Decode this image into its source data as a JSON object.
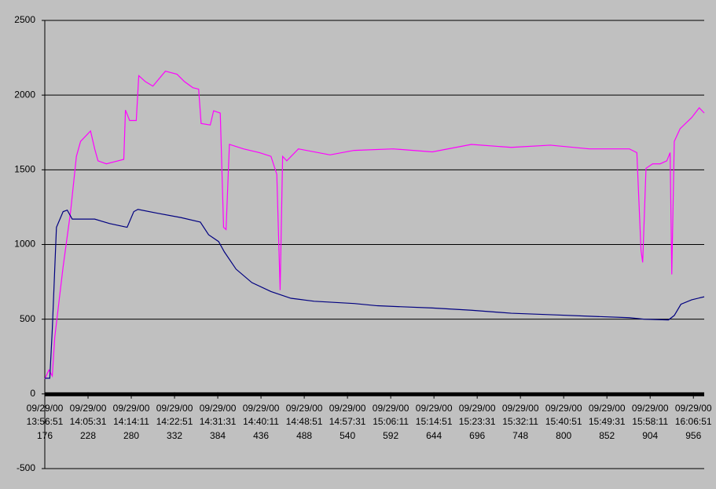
{
  "chart_data": {
    "type": "line",
    "xlim": [
      176,
      969
    ],
    "xticks": [
      {
        "value": 176,
        "label": "09/29/00\n13:56:51\n176"
      },
      {
        "value": 228,
        "label": "09/29/00\n14:05:31\n228"
      },
      {
        "value": 280,
        "label": "09/29/00\n14:14:11\n280"
      },
      {
        "value": 332,
        "label": "09/29/00\n14:22:51\n332"
      },
      {
        "value": 384,
        "label": "09/29/00\n14:31:31\n384"
      },
      {
        "value": 436,
        "label": "09/29/00\n14:40:11\n436"
      },
      {
        "value": 488,
        "label": "09/29/00\n14:48:51\n488"
      },
      {
        "value": 540,
        "label": "09/29/00\n14:57:31\n540"
      },
      {
        "value": 592,
        "label": "09/29/00\n15:06:11\n592"
      },
      {
        "value": 644,
        "label": "09/29/00\n15:14:51\n644"
      },
      {
        "value": 696,
        "label": "09/29/00\n15:23:31\n696"
      },
      {
        "value": 748,
        "label": "09/29/00\n15:32:11\n748"
      },
      {
        "value": 800,
        "label": "09/29/00\n15:40:51\n800"
      },
      {
        "value": 852,
        "label": "09/29/00\n15:49:31\n852"
      },
      {
        "value": 904,
        "label": "09/29/00\n15:58:11\n904"
      },
      {
        "value": 956,
        "label": "09/29/00\n16:06:51\n956"
      }
    ],
    "ylim": [
      -500,
      2500
    ],
    "yticks": [
      -500,
      0,
      500,
      1000,
      1500,
      2000,
      2500
    ],
    "grid": true,
    "series": [
      {
        "color": "#ff00ff",
        "x": [
          176,
          181,
          185,
          188,
          198,
          207,
          214,
          219,
          231,
          236,
          240,
          250,
          264,
          271,
          273,
          278,
          286,
          289,
          297,
          306,
          321,
          335,
          344,
          354,
          361,
          364,
          375,
          379,
          387,
          391,
          394,
          398,
          415,
          434,
          448,
          455,
          459,
          462,
          467,
          481,
          519,
          548,
          595,
          642,
          689,
          737,
          784,
          831,
          879,
          888,
          893,
          895,
          899,
          907,
          916,
          924,
          928,
          930,
          933,
          940,
          954,
          963,
          969
        ],
        "values": [
          100,
          160,
          120,
          380,
          850,
          1220,
          1590,
          1690,
          1760,
          1640,
          1560,
          1540,
          1560,
          1570,
          1900,
          1830,
          1830,
          2130,
          2090,
          2060,
          2160,
          2140,
          2090,
          2050,
          2040,
          1810,
          1800,
          1895,
          1880,
          1115,
          1100,
          1670,
          1640,
          1615,
          1590,
          1470,
          695,
          1590,
          1560,
          1640,
          1600,
          1630,
          1640,
          1620,
          1670,
          1650,
          1665,
          1640,
          1640,
          1615,
          960,
          880,
          1510,
          1540,
          1540,
          1560,
          1615,
          800,
          1690,
          1775,
          1850,
          1915,
          1880
        ]
      },
      {
        "color": "#000080",
        "x": [
          176,
          182,
          185,
          190,
          198,
          203,
          209,
          236,
          254,
          275,
          283,
          288,
          311,
          340,
          363,
          373,
          385,
          392,
          406,
          425,
          448,
          472,
          500,
          548,
          576,
          642,
          689,
          737,
          784,
          831,
          879,
          897,
          926,
          933,
          941,
          954,
          969
        ],
        "values": [
          105,
          105,
          430,
          1115,
          1220,
          1230,
          1170,
          1170,
          1140,
          1115,
          1220,
          1235,
          1210,
          1180,
          1150,
          1065,
          1020,
          950,
          835,
          745,
          685,
          640,
          620,
          605,
          590,
          575,
          560,
          540,
          530,
          520,
          510,
          500,
          495,
          525,
          600,
          630,
          650
        ]
      }
    ]
  }
}
